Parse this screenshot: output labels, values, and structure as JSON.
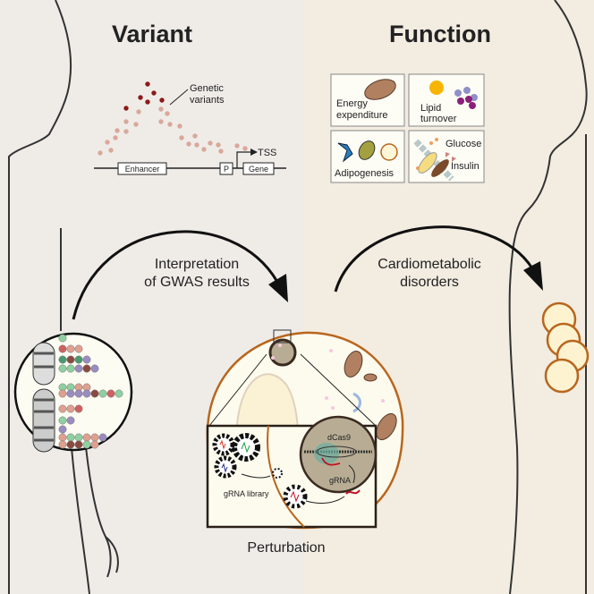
{
  "titles": {
    "variant": "Variant",
    "function": "Function"
  },
  "locus": {
    "annotation": [
      "Genetic",
      "variants"
    ],
    "tss": "TSS",
    "enhancer": "Enhancer",
    "promoter": "P",
    "gene": "Gene"
  },
  "functions": {
    "energy": [
      "Energy",
      "expenditure"
    ],
    "lipid": [
      "Lipid",
      "turnover"
    ],
    "adipogenesis": "Adipogenesis",
    "glucose": "Glucose",
    "insulin": "Insulin"
  },
  "arrows": {
    "left": [
      "Interpretation",
      "of GWAS results"
    ],
    "right": [
      "Cardiometabolic",
      "disorders"
    ]
  },
  "perturbation": {
    "label": "Perturbation",
    "dcas9": "dCas9",
    "grna": "gRNA",
    "library": "gRNA library"
  },
  "colors": {
    "left_bg": "#efece8",
    "right_bg": "#f2ece1",
    "cell_membrane": "#b8661e",
    "variant_dark": "#8b1a1a",
    "variant_light": "#d9a89a"
  }
}
